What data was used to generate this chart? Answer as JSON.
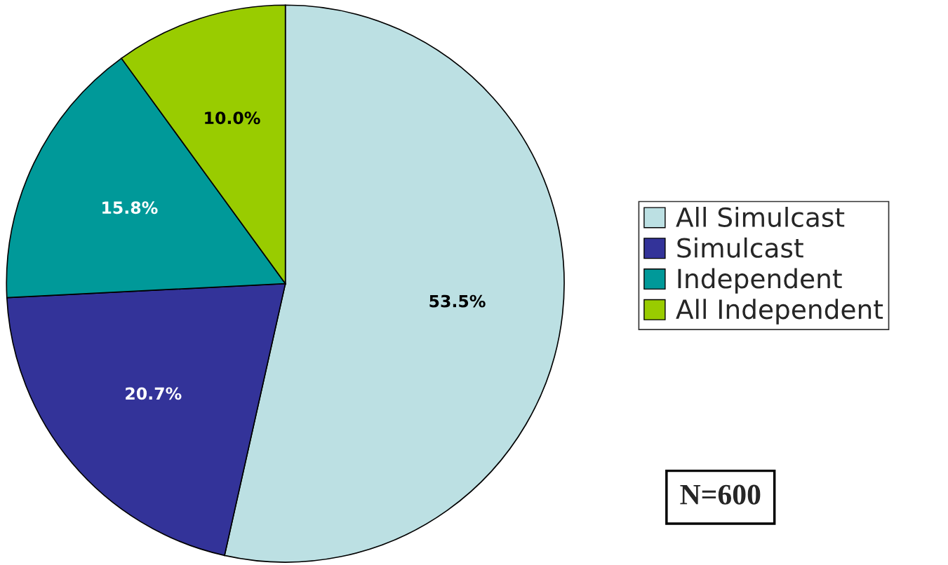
{
  "chart_data": {
    "type": "pie",
    "categories": [
      "All Simulcast",
      "Simulcast",
      "Independent",
      "All Independent"
    ],
    "values": [
      53.5,
      20.7,
      15.8,
      10.0
    ],
    "colors": [
      "#bce0e3",
      "#333399",
      "#009999",
      "#99cc00"
    ],
    "value_labels": [
      "53.5%",
      "20.7%",
      "15.8%",
      "10.0%"
    ],
    "legend": "right",
    "annotations": [
      "N=600"
    ]
  }
}
